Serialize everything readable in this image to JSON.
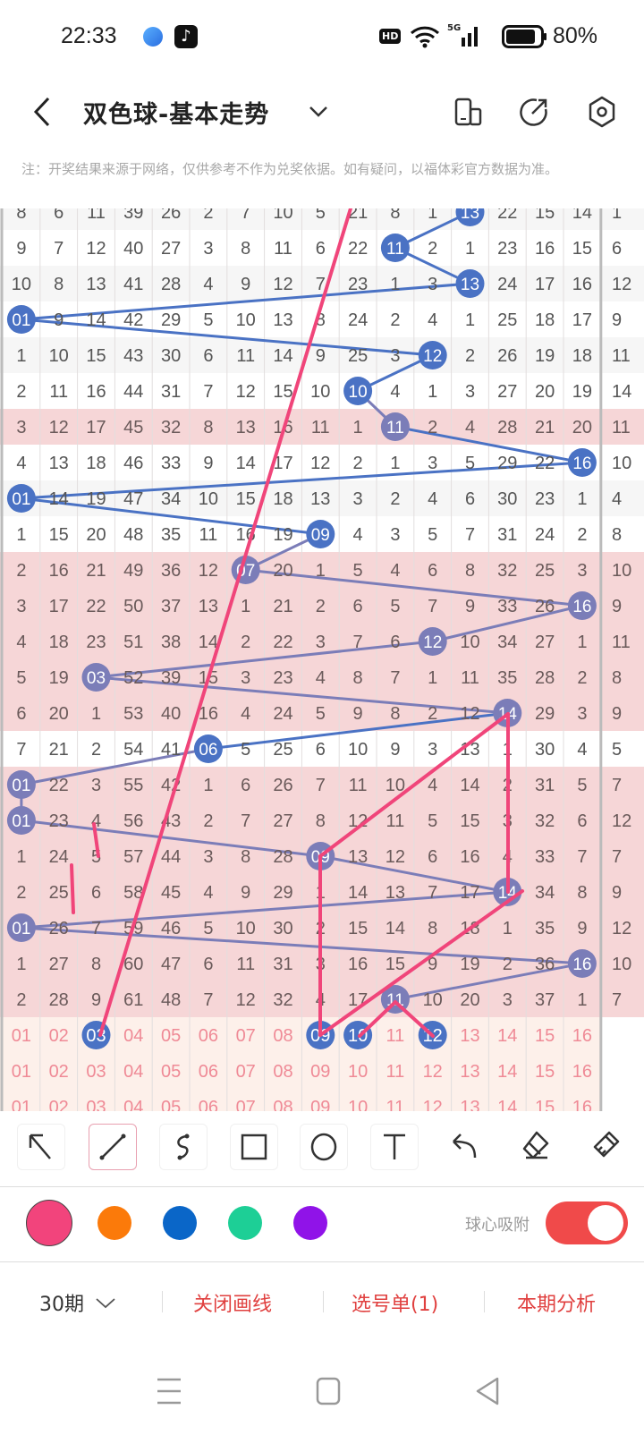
{
  "status_bar": {
    "time": "22:33",
    "battery": "80%",
    "hd": "HD",
    "network": "5G",
    "icons": [
      "browser-app-icon",
      "tiktok-icon",
      "hd-icon",
      "wifi-icon",
      "signal-icon",
      "battery-icon"
    ]
  },
  "header": {
    "title": "双色球-基本走势",
    "icons": [
      "back-icon",
      "chevron-down-icon",
      "phone-layout-icon",
      "share-icon",
      "settings-icon"
    ]
  },
  "note": "注：开奖结果来源于网络，仅供参考不作为兑奖依据。如有疑问，以福体彩官方数据为准。",
  "grid": {
    "columns": [
      "01",
      "02",
      "03",
      "04",
      "05",
      "06",
      "07",
      "08",
      "09",
      "10",
      "11",
      "12",
      "13",
      "14",
      "15",
      "16"
    ],
    "rows": [
      {
        "cells": [
          "8",
          "6",
          "11",
          "39",
          "26",
          "2",
          "7",
          "10",
          "5",
          "21",
          "8",
          "1",
          "13",
          "22",
          "15",
          "14"
        ],
        "ball": 13,
        "pink": false,
        "extra": "1"
      },
      {
        "cells": [
          "9",
          "7",
          "12",
          "40",
          "27",
          "3",
          "8",
          "11",
          "6",
          "22",
          "11",
          "2",
          "1",
          "23",
          "16",
          "15"
        ],
        "ball": 11,
        "pink": false,
        "extra": "6"
      },
      {
        "cells": [
          "10",
          "8",
          "13",
          "41",
          "28",
          "4",
          "9",
          "12",
          "7",
          "23",
          "1",
          "3",
          "13",
          "24",
          "17",
          "16"
        ],
        "ball": 13,
        "pink": false,
        "extra": "12"
      },
      {
        "cells": [
          "01",
          "9",
          "14",
          "42",
          "29",
          "5",
          "10",
          "13",
          "8",
          "24",
          "2",
          "4",
          "1",
          "25",
          "18",
          "17"
        ],
        "ball": 1,
        "pink": false,
        "extra": "9"
      },
      {
        "cells": [
          "1",
          "10",
          "15",
          "43",
          "30",
          "6",
          "11",
          "14",
          "9",
          "25",
          "3",
          "12",
          "2",
          "26",
          "19",
          "18"
        ],
        "ball": 12,
        "pink": false,
        "extra": "11"
      },
      {
        "cells": [
          "2",
          "11",
          "16",
          "44",
          "31",
          "7",
          "12",
          "15",
          "10",
          "10",
          "4",
          "1",
          "3",
          "27",
          "20",
          "19"
        ],
        "ball": 10,
        "pink": false,
        "extra": "14"
      },
      {
        "cells": [
          "3",
          "12",
          "17",
          "45",
          "32",
          "8",
          "13",
          "16",
          "11",
          "1",
          "11",
          "2",
          "4",
          "28",
          "21",
          "20"
        ],
        "ball": 11,
        "pink": true,
        "extra": "11"
      },
      {
        "cells": [
          "4",
          "13",
          "18",
          "46",
          "33",
          "9",
          "14",
          "17",
          "12",
          "2",
          "1",
          "3",
          "5",
          "29",
          "22",
          "16"
        ],
        "ball": 16,
        "pink": false,
        "extra": "10"
      },
      {
        "cells": [
          "01",
          "14",
          "19",
          "47",
          "34",
          "10",
          "15",
          "18",
          "13",
          "3",
          "2",
          "4",
          "6",
          "30",
          "23",
          "1"
        ],
        "ball": 1,
        "pink": false,
        "extra": "4"
      },
      {
        "cells": [
          "1",
          "15",
          "20",
          "48",
          "35",
          "11",
          "16",
          "19",
          "09",
          "4",
          "3",
          "5",
          "7",
          "31",
          "24",
          "2"
        ],
        "ball": 9,
        "pink": false,
        "extra": "8"
      },
      {
        "cells": [
          "2",
          "16",
          "21",
          "49",
          "36",
          "12",
          "07",
          "20",
          "1",
          "5",
          "4",
          "6",
          "8",
          "32",
          "25",
          "3"
        ],
        "ball": 7,
        "pink": true,
        "extra": "10"
      },
      {
        "cells": [
          "3",
          "17",
          "22",
          "50",
          "37",
          "13",
          "1",
          "21",
          "2",
          "6",
          "5",
          "7",
          "9",
          "33",
          "26",
          "16"
        ],
        "ball": 16,
        "pink": true,
        "extra": "9"
      },
      {
        "cells": [
          "4",
          "18",
          "23",
          "51",
          "38",
          "14",
          "2",
          "22",
          "3",
          "7",
          "6",
          "12",
          "10",
          "34",
          "27",
          "1"
        ],
        "ball": 12,
        "pink": true,
        "extra": "11"
      },
      {
        "cells": [
          "5",
          "19",
          "03",
          "52",
          "39",
          "15",
          "3",
          "23",
          "4",
          "8",
          "7",
          "1",
          "11",
          "35",
          "28",
          "2"
        ],
        "ball": 3,
        "pink": true,
        "extra": "8"
      },
      {
        "cells": [
          "6",
          "20",
          "1",
          "53",
          "40",
          "16",
          "4",
          "24",
          "5",
          "9",
          "8",
          "2",
          "12",
          "14",
          "29",
          "3"
        ],
        "ball": 14,
        "pink": true,
        "extra": "9"
      },
      {
        "cells": [
          "7",
          "21",
          "2",
          "54",
          "41",
          "06",
          "5",
          "25",
          "6",
          "10",
          "9",
          "3",
          "13",
          "1",
          "30",
          "4"
        ],
        "ball": 6,
        "pink": false,
        "extra": "5"
      },
      {
        "cells": [
          "01",
          "22",
          "3",
          "55",
          "42",
          "1",
          "6",
          "26",
          "7",
          "11",
          "10",
          "4",
          "14",
          "2",
          "31",
          "5"
        ],
        "ball": 1,
        "pink": true,
        "extra": "7"
      },
      {
        "cells": [
          "01",
          "23",
          "4",
          "56",
          "43",
          "2",
          "7",
          "27",
          "8",
          "12",
          "11",
          "5",
          "15",
          "3",
          "32",
          "6"
        ],
        "ball": 1,
        "pink": true,
        "extra": "12"
      },
      {
        "cells": [
          "1",
          "24",
          "5",
          "57",
          "44",
          "3",
          "8",
          "28",
          "09",
          "13",
          "12",
          "6",
          "16",
          "4",
          "33",
          "7"
        ],
        "ball": 9,
        "pink": true,
        "extra": "7"
      },
      {
        "cells": [
          "2",
          "25",
          "6",
          "58",
          "45",
          "4",
          "9",
          "29",
          "1",
          "14",
          "13",
          "7",
          "17",
          "14",
          "34",
          "8"
        ],
        "ball": 14,
        "pink": true,
        "extra": "9"
      },
      {
        "cells": [
          "01",
          "26",
          "7",
          "59",
          "46",
          "5",
          "10",
          "30",
          "2",
          "15",
          "14",
          "8",
          "18",
          "1",
          "35",
          "9"
        ],
        "ball": 1,
        "pink": true,
        "extra": "12"
      },
      {
        "cells": [
          "1",
          "27",
          "8",
          "60",
          "47",
          "6",
          "11",
          "31",
          "3",
          "16",
          "15",
          "9",
          "19",
          "2",
          "36",
          "16"
        ],
        "ball": 16,
        "pink": true,
        "extra": "10"
      },
      {
        "cells": [
          "2",
          "28",
          "9",
          "61",
          "48",
          "7",
          "12",
          "32",
          "4",
          "17",
          "11",
          "10",
          "20",
          "3",
          "37",
          "1"
        ],
        "ball": 11,
        "pink": true,
        "extra": "7"
      }
    ],
    "pick_rows": [
      {
        "selected": [
          3,
          9,
          10,
          12
        ]
      },
      {
        "selected": []
      },
      {
        "selected": []
      }
    ],
    "colors": {
      "ball_blue": "#4a72c4",
      "ball_purple": "#7b7db8",
      "pink_row": "#f6d6d7",
      "pick_row": "#fdf0ea",
      "pick_text": "#ef8a96",
      "drawing": "#f0457a"
    }
  },
  "toolbar": {
    "tools": [
      "arrow-tool",
      "line-tool",
      "curve-tool",
      "rectangle-tool",
      "circle-tool",
      "text-tool",
      "undo",
      "eraser",
      "clear-brush"
    ],
    "selected_tool": "line-tool"
  },
  "palette": {
    "colors": [
      "#f2447c",
      "#fb7a0a",
      "#0a66c8",
      "#1dcf96",
      "#9013e8"
    ],
    "selected": "#f2447c",
    "snap_label": "球心吸附",
    "snap_on": true
  },
  "bottom_bar": {
    "period": "30期",
    "close_drawing": "关闭画线",
    "pick_list": "选号单(1)",
    "analysis": "本期分析"
  },
  "nav": [
    "menu-icon",
    "home-icon",
    "back-nav-icon"
  ]
}
